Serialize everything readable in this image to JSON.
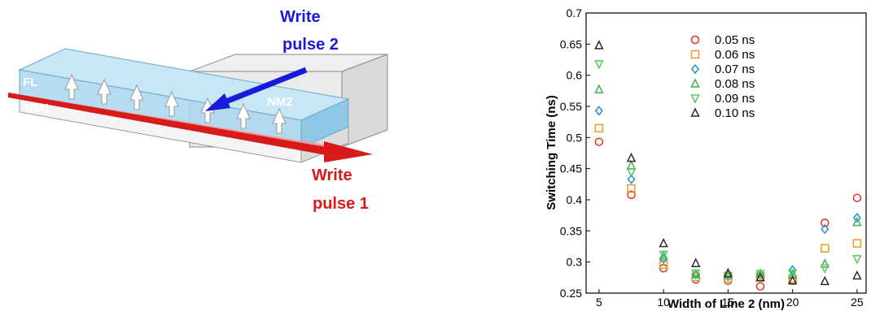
{
  "diagram": {
    "labels": {
      "write_pulse_2_line1": "Write",
      "write_pulse_2_line2": "pulse 2",
      "write_pulse_1_line1": "Write",
      "write_pulse_1_line2": "pulse 1",
      "fl": "FL",
      "nm1": "NM1",
      "nm2": "NM2"
    },
    "colors": {
      "write_pulse_2": "#1a1adc",
      "write_pulse_1": "#d81a1a",
      "fl_layer": "#a9d6ef",
      "nm_box": "#e6e6e6"
    }
  },
  "chart_data": {
    "type": "scatter",
    "title": "",
    "xlabel": "Width of Line 2 (nm)",
    "ylabel": "Switching Time (ns)",
    "xlim": [
      4,
      25.7
    ],
    "ylim": [
      0.25,
      0.7
    ],
    "xticks": [
      5,
      10,
      15,
      20,
      25
    ],
    "yticks": [
      0.25,
      0.3,
      0.35,
      0.4,
      0.45,
      0.5,
      0.55,
      0.6,
      0.65,
      0.7
    ],
    "x": [
      5,
      7.5,
      10,
      12.5,
      15,
      17.5,
      20,
      22.5,
      25
    ],
    "grid": false,
    "legend_position": "top-center",
    "series": [
      {
        "name": "0.05 ns",
        "marker": "circle",
        "color": "#e8302a",
        "values": [
          0.493,
          0.408,
          0.29,
          0.272,
          0.27,
          0.261,
          0.27,
          0.363,
          0.403
        ]
      },
      {
        "name": "0.06 ns",
        "marker": "square",
        "color": "#f29a1f",
        "values": [
          0.515,
          0.418,
          0.296,
          0.276,
          0.274,
          0.277,
          0.273,
          0.322,
          0.33
        ]
      },
      {
        "name": "0.07 ns",
        "marker": "diamond",
        "color": "#1f8fd8",
        "values": [
          0.543,
          0.433,
          0.305,
          0.28,
          0.277,
          0.28,
          0.287,
          0.353,
          0.371
        ]
      },
      {
        "name": "0.08 ns",
        "marker": "triangle-up",
        "color": "#3db34a",
        "values": [
          0.577,
          0.455,
          0.31,
          0.28,
          0.279,
          0.281,
          0.28,
          0.297,
          0.364
        ]
      },
      {
        "name": "0.09 ns",
        "marker": "triangle-down",
        "color": "#5cc85e",
        "values": [
          0.618,
          0.444,
          0.312,
          0.282,
          0.278,
          0.281,
          0.282,
          0.29,
          0.305
        ]
      },
      {
        "name": "0.10 ns",
        "marker": "triangle-up",
        "color": "#2a2a2a",
        "values": [
          0.648,
          0.467,
          0.33,
          0.298,
          0.282,
          0.275,
          0.27,
          0.269,
          0.278
        ]
      }
    ]
  }
}
